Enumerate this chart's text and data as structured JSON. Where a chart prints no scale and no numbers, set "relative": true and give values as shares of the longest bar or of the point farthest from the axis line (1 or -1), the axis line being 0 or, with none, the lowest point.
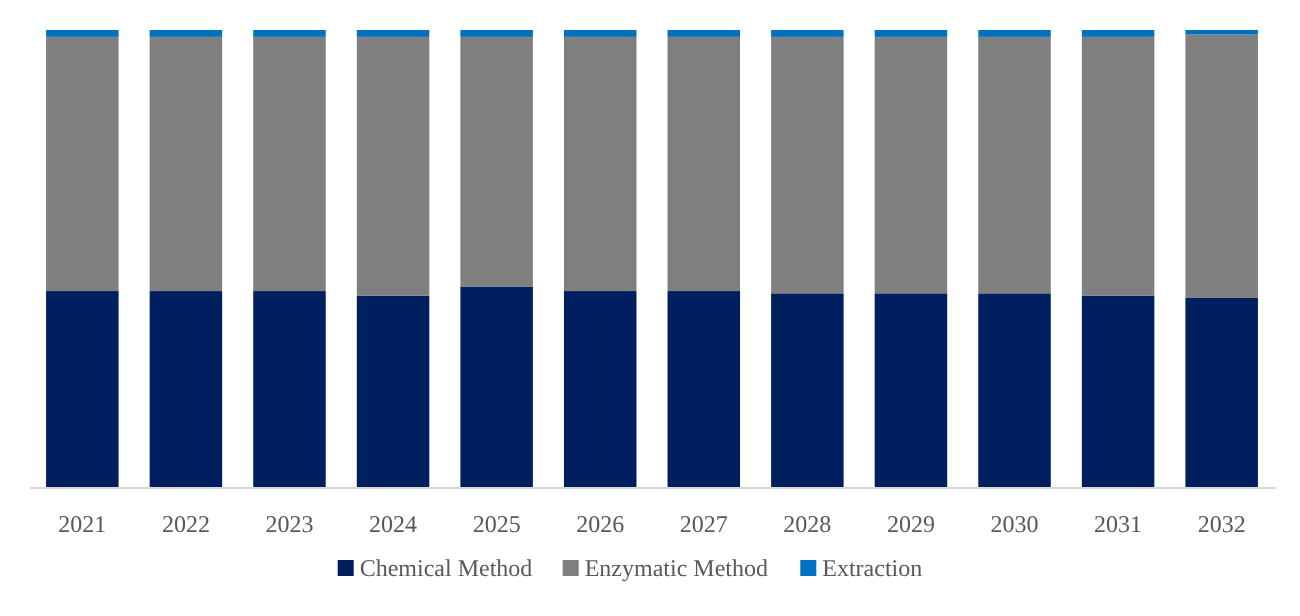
{
  "chart_data": {
    "type": "bar",
    "stacked": true,
    "relative": true,
    "legend": "bottom",
    "categories": [
      "2021",
      "2022",
      "2023",
      "2024",
      "2025",
      "2026",
      "2027",
      "2028",
      "2029",
      "2030",
      "2031",
      "2032"
    ],
    "series": [
      {
        "name": "Chemical Method",
        "color": "#001f5f",
        "values": [
          0.43,
          0.43,
          0.43,
          0.42,
          0.44,
          0.43,
          0.43,
          0.425,
          0.425,
          0.425,
          0.42,
          0.415
        ]
      },
      {
        "name": "Enzymatic Method",
        "color": "#7f7f7f",
        "values": [
          0.555,
          0.555,
          0.555,
          0.565,
          0.545,
          0.555,
          0.555,
          0.56,
          0.56,
          0.56,
          0.565,
          0.575
        ]
      },
      {
        "name": "Extraction",
        "color": "#0070c0",
        "values": [
          0.015,
          0.015,
          0.015,
          0.015,
          0.015,
          0.015,
          0.015,
          0.015,
          0.015,
          0.015,
          0.015,
          0.01
        ]
      }
    ]
  }
}
